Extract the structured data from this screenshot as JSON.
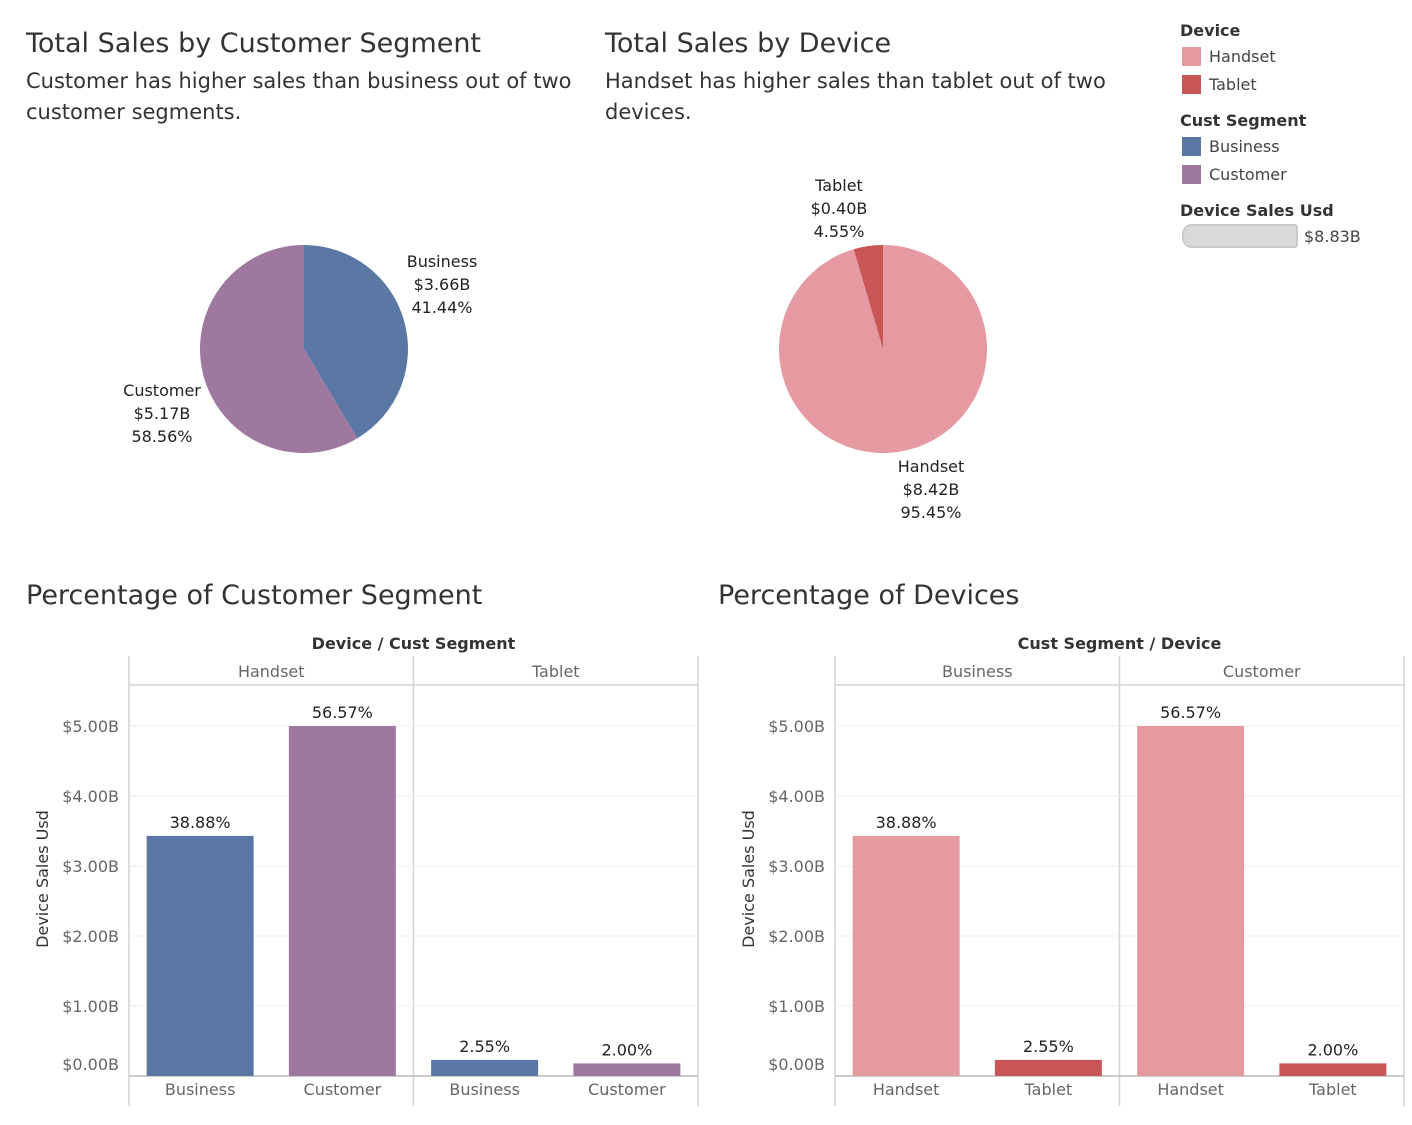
{
  "pie_segment": {
    "title": "Total Sales by Customer Segment",
    "subtitle": "Customer has higher sales than business out of two customer segments."
  },
  "pie_device": {
    "title": "Total Sales by Device",
    "subtitle": "Handset has higher sales than tablet out of two devices."
  },
  "bar_segment": {
    "title": "Percentage of Customer Segment",
    "header": "Device  /  Cust Segment",
    "yaxis_label": "Device Sales Usd"
  },
  "bar_device": {
    "title": "Percentage of Devices",
    "header": "Cust Segment  /  Device",
    "yaxis_label": "Device Sales Usd"
  },
  "legend": {
    "device_title": "Device",
    "device_items": [
      {
        "label": "Handset",
        "color": "#e59aa2"
      },
      {
        "label": "Tablet",
        "color": "#c95656"
      }
    ],
    "segment_title": "Cust Segment",
    "segment_items": [
      {
        "label": "Business",
        "color": "#5b78a4"
      },
      {
        "label": "Customer",
        "color": "#9e789f"
      }
    ],
    "size_title": "Device Sales Usd",
    "size_value": "$8.83B"
  },
  "colors": {
    "handset": "#e59aa2",
    "tablet": "#c95656",
    "business": "#5b78a4",
    "customer": "#9e789f"
  },
  "chart_data": [
    {
      "type": "pie",
      "title": "Total Sales by Customer Segment",
      "slices": [
        {
          "name": "Business",
          "value_label": "$3.66B",
          "pct_label": "41.44%",
          "value": 3.66,
          "percent": 41.44,
          "color": "#5b78a4"
        },
        {
          "name": "Customer",
          "value_label": "$5.17B",
          "pct_label": "58.56%",
          "value": 5.17,
          "percent": 58.56,
          "color": "#9e789f"
        }
      ]
    },
    {
      "type": "pie",
      "title": "Total Sales by Device",
      "slices": [
        {
          "name": "Handset",
          "value_label": "$8.42B",
          "pct_label": "95.45%",
          "value": 8.42,
          "percent": 95.45,
          "color": "#e59aa2"
        },
        {
          "name": "Tablet",
          "value_label": "$0.40B",
          "pct_label": "4.55%",
          "value": 0.4,
          "percent": 4.55,
          "color": "#c95656"
        }
      ]
    },
    {
      "type": "bar",
      "title": "Percentage of Customer Segment",
      "ylabel": "Device Sales Usd",
      "ylim": [
        0,
        5.0
      ],
      "yticks": [
        "$0.00B",
        "$1.00B",
        "$2.00B",
        "$3.00B",
        "$4.00B",
        "$5.00B"
      ],
      "panels": [
        {
          "name": "Handset",
          "bars": [
            {
              "category": "Business",
              "value": 3.43,
              "label": "38.88%",
              "color": "#5b78a4"
            },
            {
              "category": "Customer",
              "value": 5.0,
              "label": "56.57%",
              "color": "#9e789f"
            }
          ]
        },
        {
          "name": "Tablet",
          "bars": [
            {
              "category": "Business",
              "value": 0.23,
              "label": "2.55%",
              "color": "#5b78a4"
            },
            {
              "category": "Customer",
              "value": 0.18,
              "label": "2.00%",
              "color": "#9e789f"
            }
          ]
        }
      ]
    },
    {
      "type": "bar",
      "title": "Percentage of Devices",
      "ylabel": "Device Sales Usd",
      "ylim": [
        0,
        5.0
      ],
      "yticks": [
        "$0.00B",
        "$1.00B",
        "$2.00B",
        "$3.00B",
        "$4.00B",
        "$5.00B"
      ],
      "panels": [
        {
          "name": "Business",
          "bars": [
            {
              "category": "Handset",
              "value": 3.43,
              "label": "38.88%",
              "color": "#e59aa2"
            },
            {
              "category": "Tablet",
              "value": 0.23,
              "label": "2.55%",
              "color": "#c95656"
            }
          ]
        },
        {
          "name": "Customer",
          "bars": [
            {
              "category": "Handset",
              "value": 5.0,
              "label": "56.57%",
              "color": "#e59aa2"
            },
            {
              "category": "Tablet",
              "value": 0.18,
              "label": "2.00%",
              "color": "#c95656"
            }
          ]
        }
      ]
    }
  ]
}
